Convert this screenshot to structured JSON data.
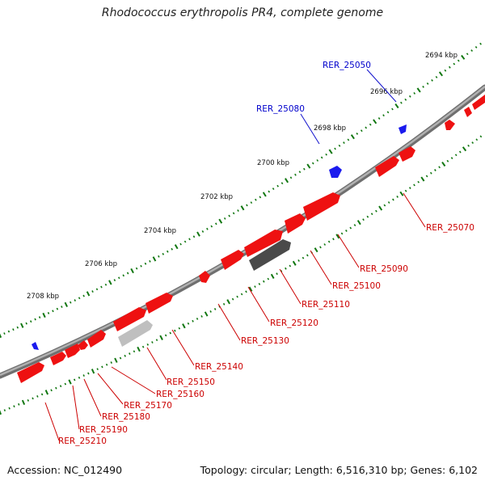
{
  "title": "Rhodococcus erythropolis PR4, complete genome",
  "accession": "Accession: NC_012490",
  "topology": "Topology: circular; Length: 6,516,310 bp; Genes: 6,102",
  "colors": {
    "forward_gene": "#ee1111",
    "reverse_gene": "#ee1111",
    "gray_gene_dark": "#555555",
    "gray_gene_light": "#bbbbbb",
    "rna_gene": "#1111ee",
    "axis": "#8c8c8c",
    "tick": "#117711",
    "blue_label": "#0000cc",
    "red_label": "#cc0000"
  },
  "ticks": [
    {
      "label": "2694 kbp"
    },
    {
      "label": "2696 kbp"
    },
    {
      "label": "2698 kbp"
    },
    {
      "label": "2700 kbp"
    },
    {
      "label": "2702 kbp"
    },
    {
      "label": "2704 kbp"
    },
    {
      "label": "2706 kbp"
    },
    {
      "label": "2708 kbp"
    }
  ],
  "gene_labels": [
    {
      "name": "RER_25050",
      "color": "blue"
    },
    {
      "name": "RER_25080",
      "color": "blue"
    },
    {
      "name": "RER_25070",
      "color": "red"
    },
    {
      "name": "RER_25090",
      "color": "red"
    },
    {
      "name": "RER_25100",
      "color": "red"
    },
    {
      "name": "RER_25110",
      "color": "red"
    },
    {
      "name": "RER_25120",
      "color": "red"
    },
    {
      "name": "RER_25130",
      "color": "red"
    },
    {
      "name": "RER_25140",
      "color": "red"
    },
    {
      "name": "RER_25150",
      "color": "red"
    },
    {
      "name": "RER_25160",
      "color": "red"
    },
    {
      "name": "RER_25170",
      "color": "red"
    },
    {
      "name": "RER_25180",
      "color": "red"
    },
    {
      "name": "RER_25190",
      "color": "red"
    },
    {
      "name": "RER_25210",
      "color": "red"
    }
  ]
}
